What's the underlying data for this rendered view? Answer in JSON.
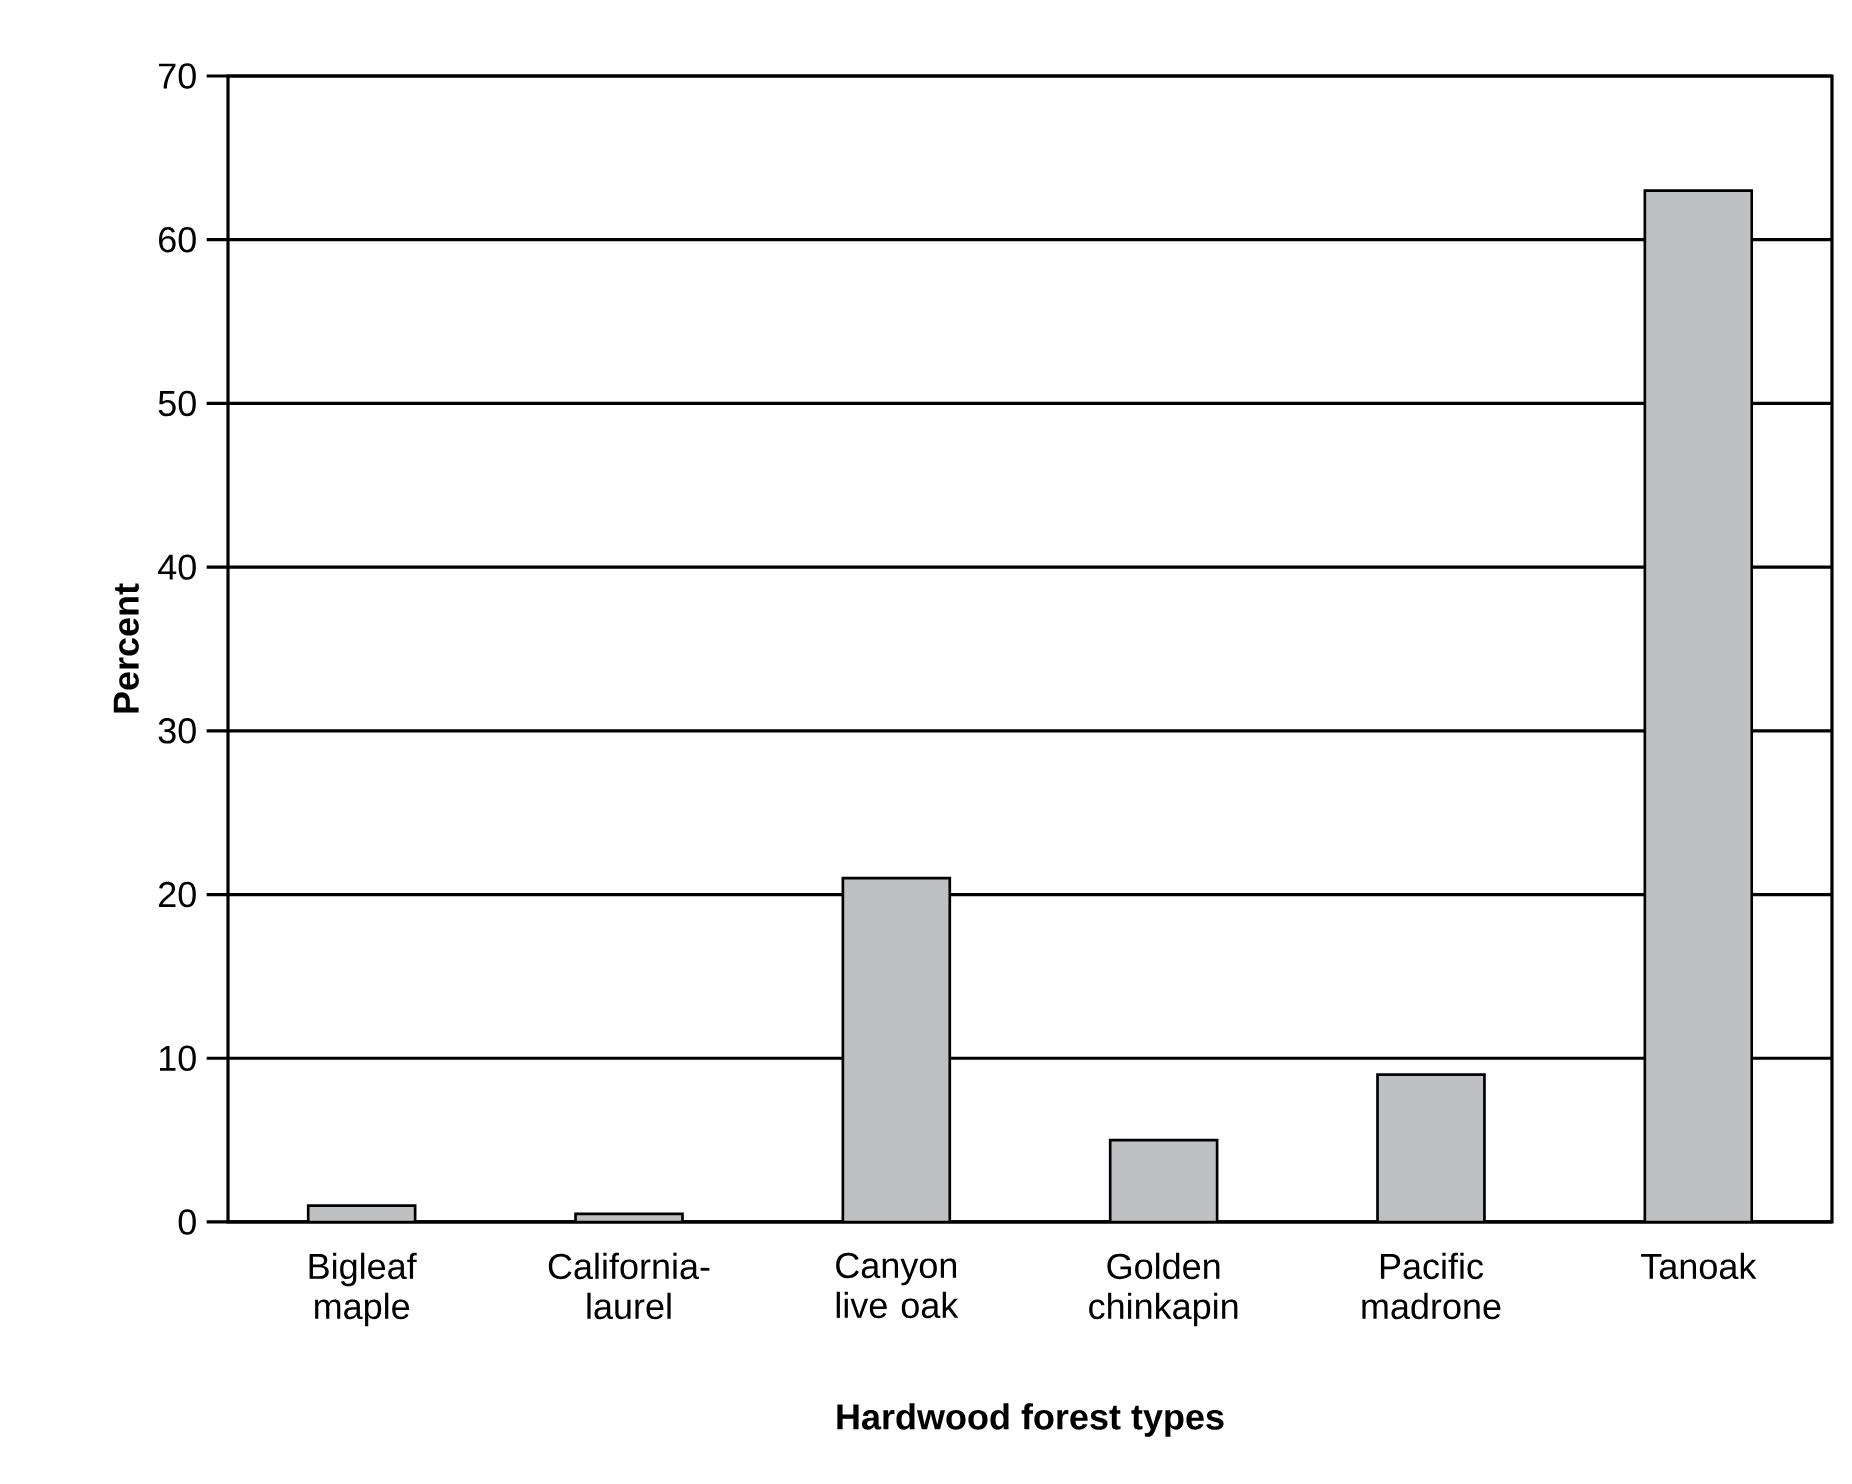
{
  "chart_data": {
    "type": "bar",
    "xlabel": "Hardwood forest types",
    "ylabel": "Percent",
    "categories": [
      "Bigleaf maple",
      "California-laurel",
      "Canyon live oak",
      "Golden chinkapin",
      "Pacific madrone",
      "Tanoak"
    ],
    "values": [
      1,
      0.5,
      21,
      5,
      9,
      63
    ],
    "color": "#bfc0c2",
    "ylim": [
      0,
      70
    ],
    "yticks": [
      0,
      10,
      20,
      30,
      40,
      50,
      60,
      70
    ],
    "grid": "y"
  }
}
